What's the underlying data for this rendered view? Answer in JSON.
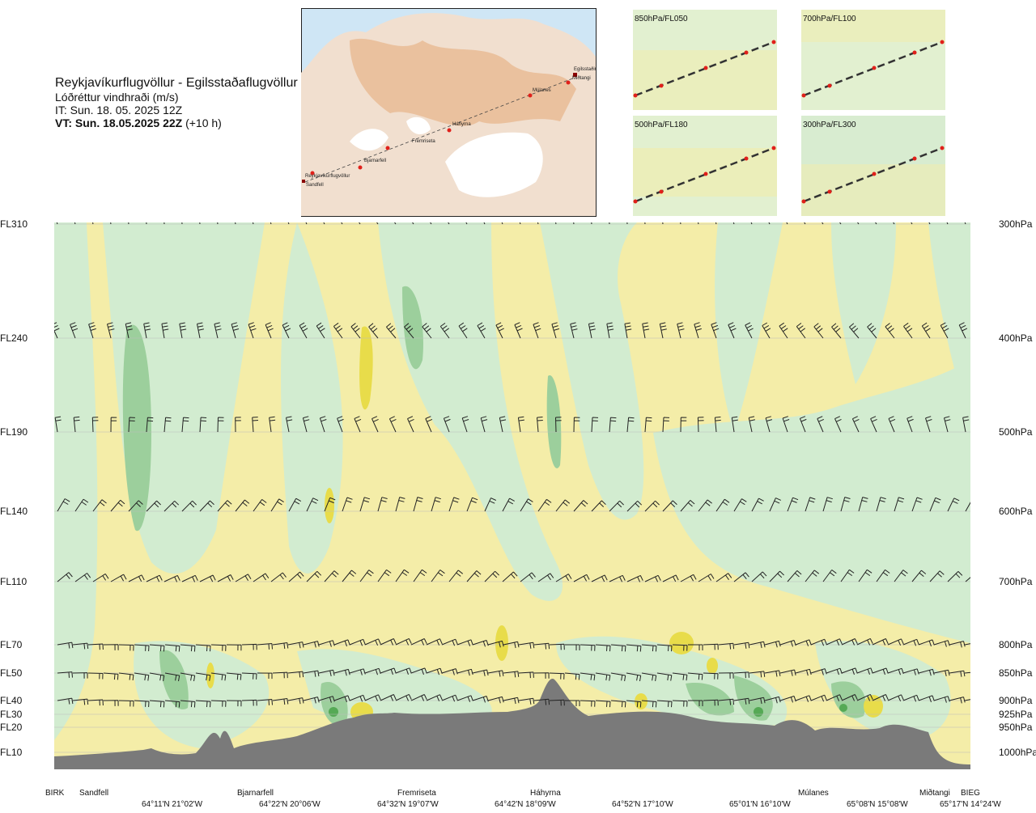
{
  "header": {
    "route": "Reykjavíkurflugvöllur - Egilsstaðaflugvöllur",
    "param": "Lóðréttur vindhraði (m/s)",
    "it": "IT: Sun. 18. 05. 2025 12Z",
    "vt_bold": "VT: Sun. 18.05.2025 22Z",
    "vt_offset": "(+10 h)"
  },
  "overview_map": {
    "waypoints": [
      "Sandfell",
      "Reykjavíkurflugvöllur",
      "Bjarnarfell",
      "Fremriseta",
      "Háhyrna",
      "Múlanes",
      "Miðtangi",
      "Egilsstaðir"
    ]
  },
  "thumbnails": [
    {
      "label": "850hPa/FL050"
    },
    {
      "label": "700hPa/FL100"
    },
    {
      "label": "500hPa/FL180"
    },
    {
      "label": "300hPa/FL300"
    }
  ],
  "chart_data": {
    "type": "heatmap",
    "title": "Lóðréttur vindhraði (m/s)",
    "levels": [
      {
        "fl": "FL310",
        "hpa": "300hPa"
      },
      {
        "fl": "FL240",
        "hpa": "400hPa"
      },
      {
        "fl": "FL190",
        "hpa": "500hPa"
      },
      {
        "fl": "FL140",
        "hpa": "600hPa"
      },
      {
        "fl": "FL110",
        "hpa": "700hPa"
      },
      {
        "fl": "FL70",
        "hpa": "800hPa"
      },
      {
        "fl": "FL50",
        "hpa": "850hPa"
      },
      {
        "fl": "FL40",
        "hpa": "900hPa"
      },
      {
        "fl": "FL30",
        "hpa": "925hPa"
      },
      {
        "fl": "FL20",
        "hpa": "950hPa"
      },
      {
        "fl": "FL10",
        "hpa": "1000hPa"
      }
    ],
    "waypoints": [
      "BIRK",
      "Sandfell",
      "Bjarnarfell",
      "Fremriseta",
      "Háhyrna",
      "Múlanes",
      "Miðtangi",
      "BIEG"
    ],
    "coordinates": [
      "64°11'N 21°02'W",
      "64°22'N 20°06'W",
      "64°32'N 19°07'W",
      "64°42'N 18°09'W",
      "64°52'N 17°10'W",
      "65°01'N 16°10'W",
      "65°08'N 15°08'W",
      "65°17'N 14°24'W"
    ],
    "colors": {
      "down": "#f4eda8",
      "weak_down": "#fdf8d6",
      "up": "#d2ecd0",
      "strong_up": "#9ccf9c",
      "very_strong_up": "#55a955",
      "strong_down": "#e8dc4a",
      "terrain": "#7a7a7a"
    }
  }
}
